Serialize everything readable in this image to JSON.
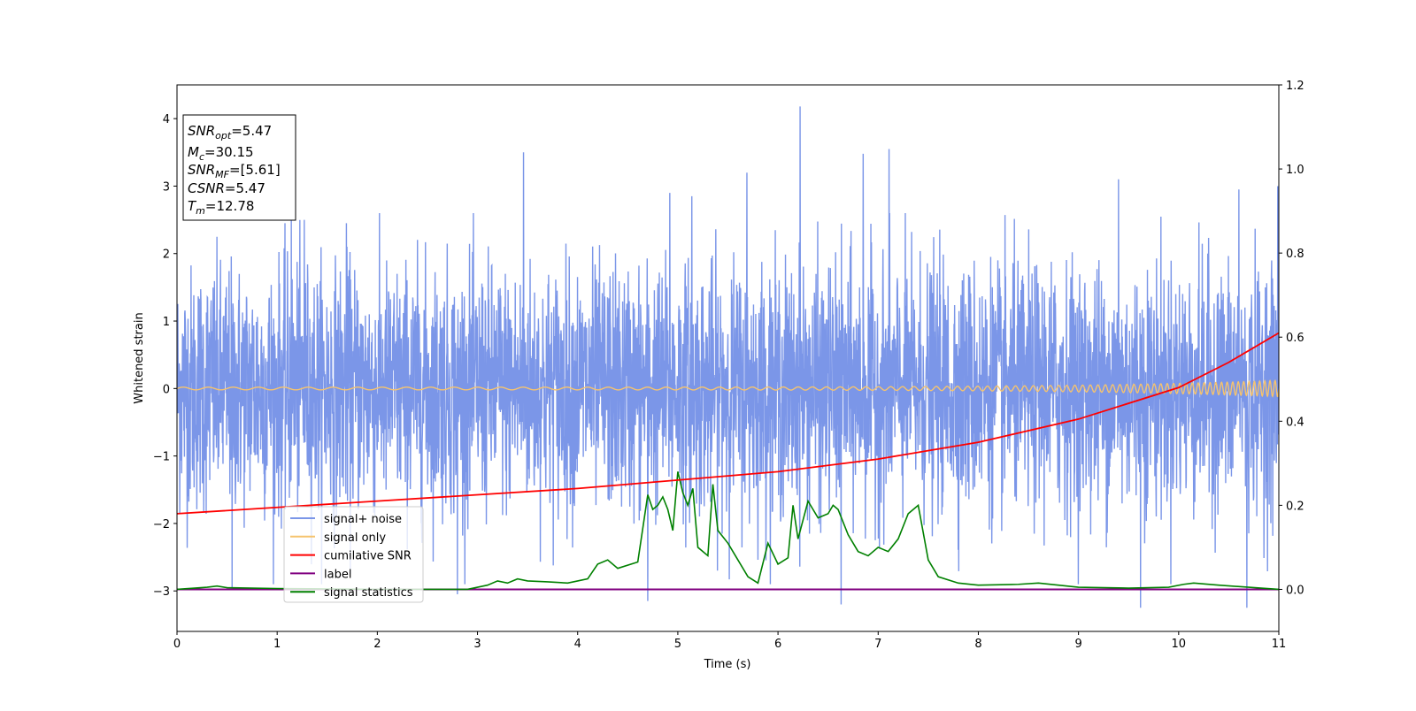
{
  "chart_data": {
    "type": "line",
    "xlabel": "Time (s)",
    "ylabel": "Whitened strain",
    "xlim": [
      0,
      11
    ],
    "ylim_left": [
      -3.6,
      4.5
    ],
    "ylim_right": [
      -0.1,
      1.2
    ],
    "x_ticks": [
      0,
      1,
      2,
      3,
      4,
      5,
      6,
      7,
      8,
      9,
      10,
      11
    ],
    "x_tick_labels": [
      "0",
      "1",
      "2",
      "3",
      "4",
      "5",
      "6",
      "7",
      "8",
      "9",
      "10",
      "11"
    ],
    "y_left_ticks": [
      -3,
      -2,
      -1,
      0,
      1,
      2,
      3,
      4
    ],
    "y_left_tick_labels": [
      "−3",
      "−2",
      "−1",
      "0",
      "1",
      "2",
      "3",
      "4"
    ],
    "y_right_ticks": [
      0.0,
      0.2,
      0.4,
      0.6,
      0.8,
      1.0,
      1.2
    ],
    "y_right_tick_labels": [
      "0.0",
      "0.2",
      "0.4",
      "0.6",
      "0.8",
      "1.0",
      "1.2"
    ],
    "annotation": {
      "lines": [
        {
          "main": "SNR",
          "sub": "opt",
          "rest": "=5.47"
        },
        {
          "main": "M",
          "sub": "c",
          "rest": "=30.15"
        },
        {
          "main": "SNR",
          "sub": "MF",
          "rest": "=[5.61]"
        },
        {
          "main": "CSNR",
          "sub": "",
          "rest": "=5.47"
        },
        {
          "main": "T",
          "sub": "m",
          "rest": "=12.78"
        }
      ]
    },
    "legend": {
      "placement": "lower-left",
      "entries": [
        {
          "label": "signal+ noise",
          "color": "#7b96e8"
        },
        {
          "label": "signal only",
          "color": "#f5c36e"
        },
        {
          "label": "cumilative SNR",
          "color": "#ff0000"
        },
        {
          "label": "label",
          "color": "#800080"
        },
        {
          "label": "signal statistics",
          "color": "#008000"
        }
      ]
    },
    "series": [
      {
        "name": "signal+ noise",
        "axis": "left",
        "color": "#7b96e8",
        "description_sd": 0.9,
        "peaks_x": [
          0.55,
          1.14,
          1.27,
          1.69,
          2.8,
          3.46,
          4.92,
          5.14,
          5.69,
          6.22,
          6.85,
          7.11,
          9.4,
          10.6,
          10.99
        ],
        "peaks_y": [
          2.5,
          2.55,
          2.5,
          2.45,
          2.6,
          3.5,
          2.9,
          2.85,
          3.2,
          4.18,
          3.48,
          3.55,
          3.1,
          2.95,
          3.0
        ],
        "troughs_x": [
          0.55,
          1.73,
          2.8,
          4.7,
          6.63,
          9.62,
          10.68
        ],
        "troughs_y": [
          -2.95,
          -2.75,
          -3.05,
          -3.15,
          -3.2,
          -3.25,
          -3.25
        ]
      },
      {
        "name": "signal only",
        "axis": "left",
        "color": "#f5c36e",
        "amp_start": 0.02,
        "amp_end": 0.12
      },
      {
        "name": "cumilative SNR",
        "axis": "right",
        "color": "#ff0000",
        "x": [
          0,
          1,
          2,
          3,
          4,
          5,
          6,
          7,
          8,
          9,
          10,
          10.5,
          11
        ],
        "y": [
          0.18,
          0.195,
          0.21,
          0.225,
          0.24,
          0.26,
          0.28,
          0.31,
          0.35,
          0.405,
          0.48,
          0.54,
          0.61
        ]
      },
      {
        "name": "label",
        "axis": "right",
        "color": "#800080",
        "x": [
          0,
          11
        ],
        "y": [
          0.0,
          0.0
        ]
      },
      {
        "name": "signal statistics",
        "axis": "right",
        "color": "#008000",
        "x": [
          0,
          0.3,
          0.4,
          0.5,
          1.0,
          2.0,
          2.9,
          3.1,
          3.2,
          3.3,
          3.4,
          3.5,
          3.7,
          3.9,
          4.0,
          4.1,
          4.2,
          4.3,
          4.4,
          4.6,
          4.7,
          4.75,
          4.8,
          4.85,
          4.9,
          4.95,
          5.0,
          5.05,
          5.1,
          5.15,
          5.2,
          5.3,
          5.35,
          5.4,
          5.5,
          5.6,
          5.7,
          5.8,
          5.9,
          6.0,
          6.1,
          6.15,
          6.2,
          6.3,
          6.4,
          6.5,
          6.55,
          6.6,
          6.7,
          6.8,
          6.9,
          7.0,
          7.1,
          7.2,
          7.3,
          7.4,
          7.5,
          7.6,
          7.8,
          8.0,
          8.4,
          8.6,
          8.8,
          9.0,
          9.5,
          9.9,
          10.05,
          10.15,
          10.4,
          10.7,
          11.0
        ],
        "y": [
          0.0,
          0.005,
          0.008,
          0.004,
          0.002,
          0.0,
          0.0,
          0.01,
          0.02,
          0.015,
          0.025,
          0.02,
          0.018,
          0.015,
          0.02,
          0.025,
          0.06,
          0.07,
          0.05,
          0.065,
          0.225,
          0.19,
          0.2,
          0.22,
          0.19,
          0.14,
          0.28,
          0.23,
          0.2,
          0.24,
          0.1,
          0.08,
          0.25,
          0.14,
          0.11,
          0.07,
          0.03,
          0.015,
          0.11,
          0.06,
          0.075,
          0.2,
          0.12,
          0.21,
          0.17,
          0.18,
          0.2,
          0.19,
          0.13,
          0.09,
          0.08,
          0.1,
          0.09,
          0.12,
          0.18,
          0.2,
          0.07,
          0.03,
          0.015,
          0.01,
          0.012,
          0.015,
          0.01,
          0.005,
          0.003,
          0.005,
          0.012,
          0.015,
          0.01,
          0.005,
          0.0
        ]
      }
    ]
  }
}
